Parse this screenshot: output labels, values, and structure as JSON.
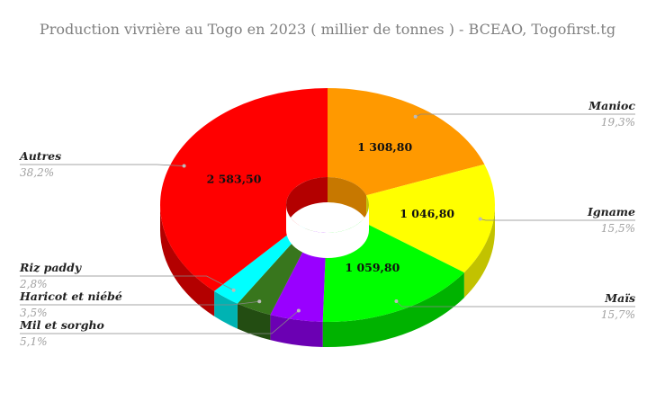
{
  "chart_data": {
    "type": "pie",
    "variant": "3d-donut",
    "title": "Production vivrière au Togo en 2023 ( millier de tonnes ) - BCEAO, Togofirst.tg",
    "slices": [
      {
        "label": "Manioc",
        "value": 1308.8,
        "value_label": "1 308,80",
        "percent_label": "19,3%",
        "color": "#ff9900",
        "side": "#c77800"
      },
      {
        "label": "Igname",
        "value": 1046.8,
        "value_label": "1 046,80",
        "percent_label": "15,5%",
        "color": "#ffff00",
        "side": "#c2c200"
      },
      {
        "label": "Maïs",
        "value": 1059.8,
        "value_label": "1 059,80",
        "percent_label": "15,7%",
        "color": "#00ff00",
        "side": "#00b200"
      },
      {
        "label": "Mil et sorgho",
        "value": 345.0,
        "value_label": "",
        "percent_label": "5,1%",
        "color": "#9900ff",
        "side": "#6b00b3"
      },
      {
        "label": "Haricot et niébé",
        "value": 236.0,
        "value_label": "",
        "percent_label": "3,5%",
        "color": "#38761d",
        "side": "#234d12"
      },
      {
        "label": "Riz paddy",
        "value": 189.0,
        "value_label": "",
        "percent_label": "2,8%",
        "color": "#00ffff",
        "side": "#00b3b3"
      },
      {
        "label": "Autres",
        "value": 2583.5,
        "value_label": "2 583,50",
        "percent_label": "38,2%",
        "color": "#ff0000",
        "side": "#b30000"
      }
    ],
    "legend": "callouts"
  }
}
